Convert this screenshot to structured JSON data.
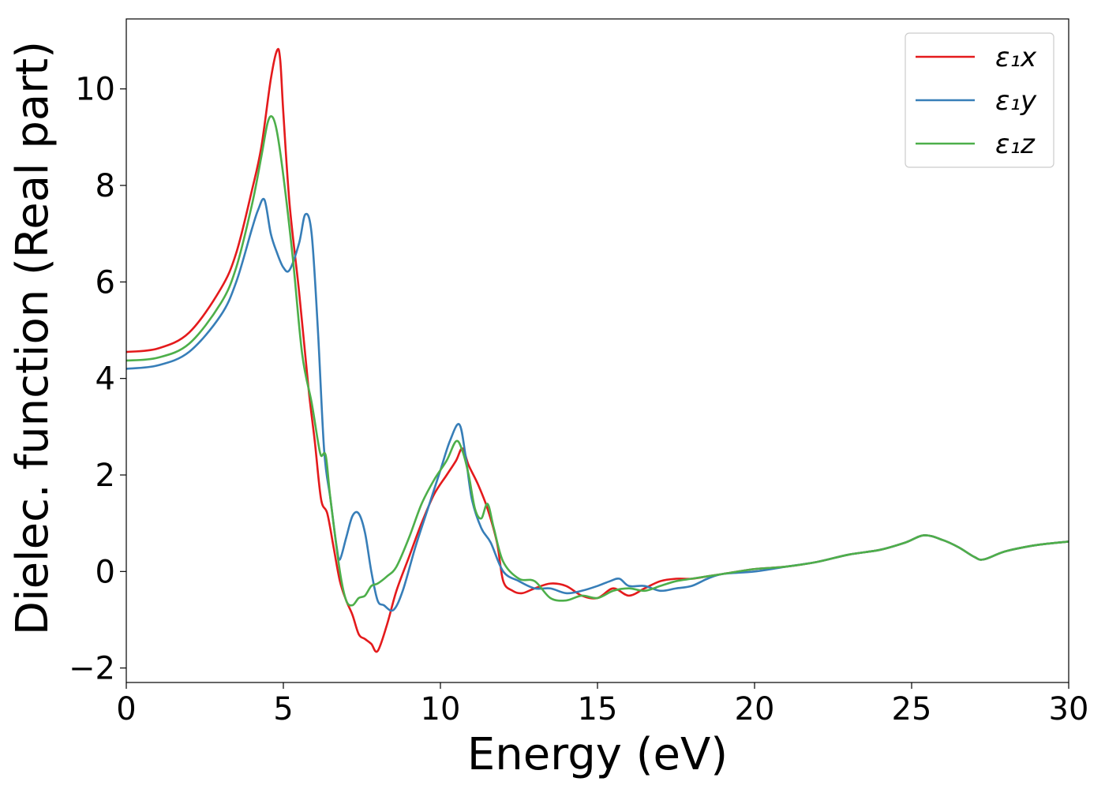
{
  "chart_data": {
    "type": "line",
    "xlabel": "Energy (eV)",
    "ylabel": "Dielec. function (Real part)",
    "xlim": [
      0,
      30
    ],
    "ylim": [
      -2.3,
      11.45
    ],
    "xticks": [
      0,
      5,
      10,
      15,
      20,
      25,
      30
    ],
    "yticks": [
      -2,
      0,
      2,
      4,
      6,
      8,
      10
    ],
    "xtick_labels": [
      "0",
      "5",
      "10",
      "15",
      "20",
      "25",
      "30"
    ],
    "ytick_labels": [
      "−2",
      "0",
      "2",
      "4",
      "6",
      "8",
      "10"
    ],
    "grid": false,
    "legend_position": "top-right",
    "series": [
      {
        "name": "ε₁x",
        "color": "#e41a1c",
        "x": [
          0,
          1,
          2,
          3,
          3.5,
          4,
          4.3,
          4.6,
          4.8,
          4.9,
          5.0,
          5.2,
          5.5,
          5.8,
          6.0,
          6.2,
          6.4,
          6.6,
          6.8,
          7.0,
          7.2,
          7.4,
          7.6,
          7.8,
          8.0,
          8.3,
          8.6,
          9.0,
          9.4,
          9.8,
          10.2,
          10.5,
          10.7,
          10.9,
          11.2,
          11.5,
          11.8,
          12.0,
          12.3,
          12.6,
          13.0,
          13.5,
          14.0,
          14.5,
          15.0,
          15.5,
          16.0,
          16.5,
          17.0,
          17.5,
          18.0,
          18.5,
          19.0,
          20.0,
          21.0,
          22.0,
          23.0,
          24.0,
          24.8,
          25.4,
          26.0,
          26.5,
          27.0,
          27.3,
          28.0,
          29.0,
          30.0
        ],
        "y": [
          4.55,
          4.62,
          4.95,
          5.85,
          6.6,
          7.9,
          8.8,
          10.2,
          10.8,
          10.6,
          9.5,
          7.6,
          5.8,
          3.8,
          2.7,
          1.5,
          1.2,
          0.5,
          -0.2,
          -0.6,
          -0.9,
          -1.3,
          -1.4,
          -1.5,
          -1.65,
          -1.1,
          -0.4,
          0.3,
          1.0,
          1.6,
          2.0,
          2.3,
          2.55,
          2.2,
          1.8,
          1.3,
          0.6,
          -0.2,
          -0.4,
          -0.45,
          -0.35,
          -0.25,
          -0.3,
          -0.5,
          -0.55,
          -0.35,
          -0.5,
          -0.35,
          -0.2,
          -0.15,
          -0.15,
          -0.1,
          -0.05,
          0.05,
          0.1,
          0.2,
          0.35,
          0.45,
          0.6,
          0.75,
          0.65,
          0.5,
          0.3,
          0.25,
          0.42,
          0.55,
          0.62
        ]
      },
      {
        "name": "ε₁y",
        "color": "#377eb8",
        "x": [
          0,
          1,
          2,
          3,
          3.5,
          4,
          4.2,
          4.4,
          4.6,
          4.8,
          5.0,
          5.2,
          5.5,
          5.7,
          5.9,
          6.1,
          6.3,
          6.5,
          6.7,
          6.8,
          7.0,
          7.2,
          7.4,
          7.6,
          7.8,
          8.0,
          8.2,
          8.5,
          8.8,
          9.2,
          9.6,
          10.0,
          10.3,
          10.6,
          10.8,
          11.0,
          11.3,
          11.6,
          12.0,
          12.5,
          13.0,
          13.5,
          14.0,
          14.5,
          15.0,
          15.4,
          15.7,
          16.0,
          16.5,
          17.0,
          17.5,
          18.0,
          18.5,
          19.0,
          20.0,
          21.0,
          22.0,
          23.0,
          24.0,
          24.8,
          25.4,
          26.0,
          26.5,
          27.0,
          27.3,
          28.0,
          29.0,
          30.0
        ],
        "y": [
          4.2,
          4.27,
          4.55,
          5.3,
          6.0,
          7.1,
          7.5,
          7.7,
          7.0,
          6.6,
          6.3,
          6.25,
          6.8,
          7.4,
          7.0,
          5.0,
          2.5,
          1.5,
          0.5,
          0.25,
          0.7,
          1.15,
          1.2,
          0.8,
          0.0,
          -0.6,
          -0.7,
          -0.8,
          -0.4,
          0.5,
          1.3,
          2.1,
          2.7,
          3.05,
          2.4,
          1.5,
          0.9,
          0.6,
          0.0,
          -0.2,
          -0.35,
          -0.35,
          -0.45,
          -0.4,
          -0.3,
          -0.2,
          -0.15,
          -0.3,
          -0.3,
          -0.4,
          -0.35,
          -0.3,
          -0.15,
          -0.05,
          0.0,
          0.1,
          0.2,
          0.35,
          0.45,
          0.6,
          0.75,
          0.65,
          0.5,
          0.3,
          0.25,
          0.42,
          0.55,
          0.62
        ]
      },
      {
        "name": "ε₁z",
        "color": "#4daf4a",
        "x": [
          0,
          1,
          2,
          3,
          3.5,
          4,
          4.3,
          4.5,
          4.65,
          4.8,
          5.0,
          5.3,
          5.6,
          5.9,
          6.1,
          6.2,
          6.35,
          6.5,
          6.8,
          7.0,
          7.2,
          7.4,
          7.6,
          7.8,
          8.0,
          8.3,
          8.6,
          9.0,
          9.4,
          9.8,
          10.2,
          10.5,
          10.7,
          10.9,
          11.1,
          11.3,
          11.5,
          11.7,
          12.0,
          12.5,
          13.0,
          13.5,
          14.0,
          14.5,
          15.0,
          15.5,
          16.0,
          16.5,
          17.0,
          17.5,
          18.0,
          18.5,
          19.0,
          20.0,
          21.0,
          22.0,
          23.0,
          24.0,
          24.8,
          25.4,
          26.0,
          26.5,
          27.0,
          27.3,
          28.0,
          29.0,
          30.0
        ],
        "y": [
          4.37,
          4.43,
          4.72,
          5.55,
          6.3,
          7.6,
          8.6,
          9.3,
          9.42,
          9.1,
          8.2,
          6.5,
          4.5,
          3.5,
          2.7,
          2.4,
          2.4,
          1.5,
          0.0,
          -0.6,
          -0.7,
          -0.55,
          -0.5,
          -0.3,
          -0.25,
          -0.1,
          0.1,
          0.7,
          1.4,
          1.9,
          2.3,
          2.7,
          2.5,
          2.0,
          1.3,
          1.1,
          1.4,
          0.9,
          0.2,
          -0.15,
          -0.2,
          -0.55,
          -0.6,
          -0.5,
          -0.55,
          -0.4,
          -0.35,
          -0.4,
          -0.3,
          -0.2,
          -0.15,
          -0.1,
          -0.05,
          0.05,
          0.1,
          0.2,
          0.35,
          0.45,
          0.6,
          0.75,
          0.65,
          0.5,
          0.3,
          0.25,
          0.42,
          0.55,
          0.62
        ]
      }
    ]
  }
}
